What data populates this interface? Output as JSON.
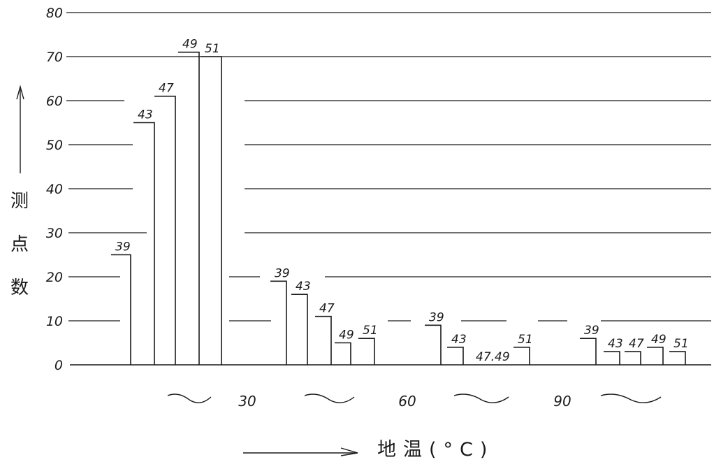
{
  "chart_data": {
    "type": "bar",
    "title": "",
    "ylabel": "测点数",
    "xlabel": "地温(°C)",
    "ylim": [
      0,
      80
    ],
    "y_ticks": [
      0,
      10,
      20,
      30,
      40,
      50,
      60,
      70,
      80
    ],
    "grid": true,
    "groups": [
      {
        "label": "",
        "bars": [
          {
            "label": "39",
            "value": 25
          },
          {
            "label": "43",
            "value": 55
          },
          {
            "label": "47",
            "value": 61
          },
          {
            "label": "49",
            "value": 71
          },
          {
            "label": "51",
            "value": 70
          }
        ]
      },
      {
        "label": "30",
        "bars": [
          {
            "label": "39",
            "value": 19
          },
          {
            "label": "43",
            "value": 16
          },
          {
            "label": "47",
            "value": 11
          },
          {
            "label": "49",
            "value": 5
          },
          {
            "label": "51",
            "value": 6
          }
        ]
      },
      {
        "label": "60",
        "bars": [
          {
            "label": "39",
            "value": 9
          },
          {
            "label": "43",
            "value": 4
          },
          {
            "label": "47.49",
            "value": 0
          },
          {
            "label": "51",
            "value": 4
          }
        ]
      },
      {
        "label": "90",
        "bars": [
          {
            "label": "39",
            "value": 6
          },
          {
            "label": "43",
            "value": 3
          },
          {
            "label": "47",
            "value": 3
          },
          {
            "label": "49",
            "value": 4
          },
          {
            "label": "51",
            "value": 3
          }
        ]
      }
    ]
  }
}
